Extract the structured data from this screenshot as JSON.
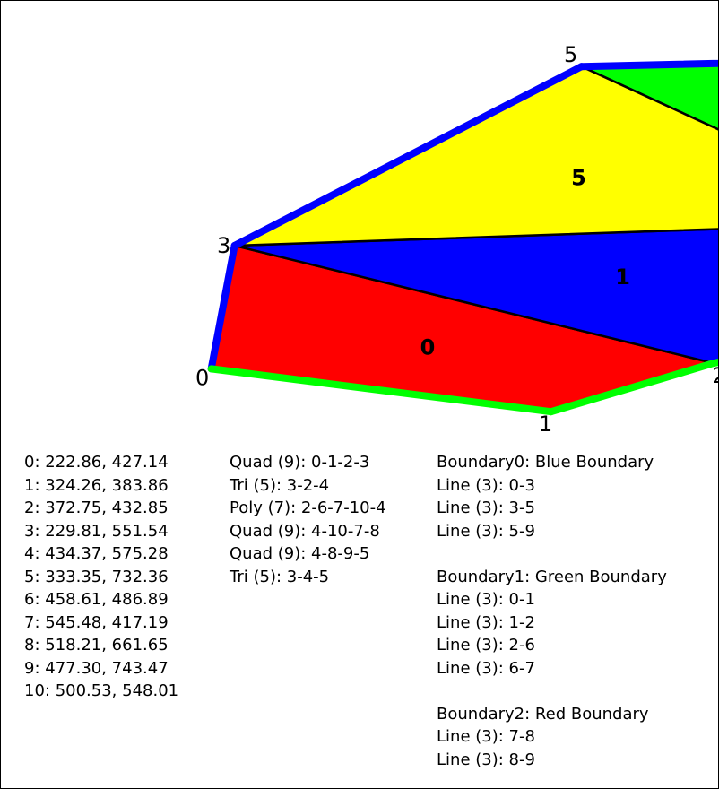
{
  "nodes": [
    {
      "id": "0",
      "x": 222.86,
      "y": 427.14,
      "text": "0: 222.86, 427.14"
    },
    {
      "id": "1",
      "x": 324.26,
      "y": 383.86,
      "text": "1: 324.26, 383.86"
    },
    {
      "id": "2",
      "x": 372.75,
      "y": 432.85,
      "text": "2: 372.75, 432.85"
    },
    {
      "id": "3",
      "x": 229.81,
      "y": 551.54,
      "text": "3: 229.81, 551.54"
    },
    {
      "id": "4",
      "x": 434.37,
      "y": 575.28,
      "text": "4: 434.37, 575.28"
    },
    {
      "id": "5",
      "x": 333.35,
      "y": 732.36,
      "text": "5: 333.35, 732.36"
    },
    {
      "id": "6",
      "x": 458.61,
      "y": 486.89,
      "text": "6: 458.61, 486.89"
    },
    {
      "id": "7",
      "x": 545.48,
      "y": 417.19,
      "text": "7: 545.48, 417.19"
    },
    {
      "id": "8",
      "x": 518.21,
      "y": 661.65,
      "text": "8: 518.21, 661.65"
    },
    {
      "id": "9",
      "x": 477.3,
      "y": 743.47,
      "text": "9: 477.30, 743.47"
    },
    {
      "id": "10",
      "x": 500.53,
      "y": 548.01,
      "text": "10: 500.53, 548.01"
    }
  ],
  "elements": [
    {
      "id": "0",
      "text": "Quad (9): 0-1-2-3",
      "nodes": [
        "0",
        "1",
        "2",
        "3"
      ],
      "color": "#ff0000"
    },
    {
      "id": "1",
      "text": "Tri (5): 3-2-4",
      "nodes": [
        "3",
        "2",
        "4"
      ],
      "color": "#0000ff"
    },
    {
      "id": "2",
      "text": "Poly (7): 2-6-7-10-4",
      "nodes": [
        "2",
        "6",
        "7",
        "10",
        "4"
      ],
      "color": "#00ffff"
    },
    {
      "id": "3",
      "text": "Quad (9): 4-10-7-8",
      "nodes": [
        "4",
        "10",
        "7",
        "8"
      ],
      "color": "#ff00ff"
    },
    {
      "id": "4",
      "text": "Quad (9): 4-8-9-5",
      "nodes": [
        "4",
        "8",
        "9",
        "5"
      ],
      "color": "#00ff00"
    },
    {
      "id": "5",
      "text": "Tri (5): 3-4-5",
      "nodes": [
        "3",
        "4",
        "5"
      ],
      "color": "#ffff00"
    }
  ],
  "boundaries": [
    {
      "title": "Boundary0: Blue Boundary",
      "color": "#0000ff",
      "lines": [
        {
          "text": "Line (3): 0-3",
          "nodes": [
            "0",
            "3"
          ]
        },
        {
          "text": "Line (3): 3-5",
          "nodes": [
            "3",
            "5"
          ]
        },
        {
          "text": "Line (3): 5-9",
          "nodes": [
            "5",
            "9"
          ]
        }
      ]
    },
    {
      "title": "Boundary1: Green Boundary",
      "color": "#00ff00",
      "lines": [
        {
          "text": "Line (3): 0-1",
          "nodes": [
            "0",
            "1"
          ]
        },
        {
          "text": "Line (3): 1-2",
          "nodes": [
            "1",
            "2"
          ]
        },
        {
          "text": "Line (3): 2-6",
          "nodes": [
            "2",
            "6"
          ]
        },
        {
          "text": "Line (3): 6-7",
          "nodes": [
            "6",
            "7"
          ]
        }
      ]
    },
    {
      "title": "Boundary2: Red Boundary",
      "color": "#ff0000",
      "lines": [
        {
          "text": "Line (3): 7-8",
          "nodes": [
            "7",
            "8"
          ]
        },
        {
          "text": "Line (3): 8-9",
          "nodes": [
            "8",
            "9"
          ]
        }
      ]
    }
  ]
}
